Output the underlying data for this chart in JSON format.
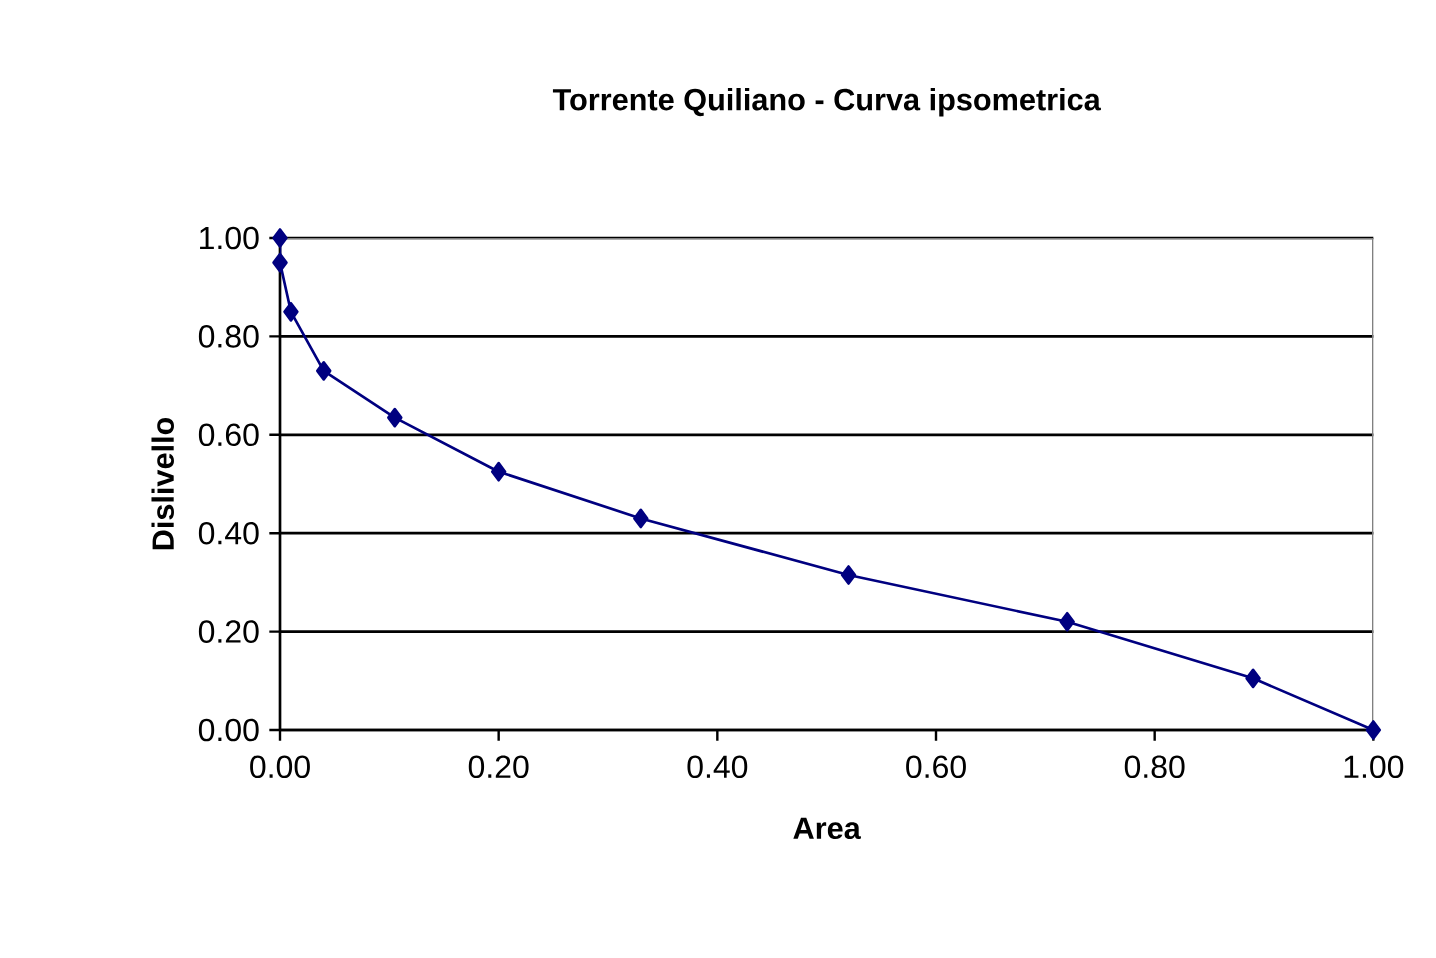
{
  "chart_data": {
    "type": "line",
    "title": "Torrente Quiliano - Curva ipsometrica",
    "xlabel": "Area",
    "ylabel": "Dislivello",
    "x": [
      0,
      0,
      0.01,
      0.04,
      0.105,
      0.2,
      0.33,
      0.52,
      0.72,
      0.89,
      1
    ],
    "series": [
      {
        "color": "#000080",
        "values": [
          1.0,
          0.95,
          0.85,
          0.73,
          0.635,
          0.525,
          0.43,
          0.315,
          0.22,
          0.105,
          0
        ]
      }
    ],
    "xlim": [
      0,
      1
    ],
    "ylim": [
      0,
      1
    ],
    "xticks": [
      {
        "value": 0,
        "label": "0.00"
      },
      {
        "value": 0.2,
        "label": "0.20"
      },
      {
        "value": 0.4,
        "label": "0.40"
      },
      {
        "value": 0.6,
        "label": "0.60"
      },
      {
        "value": 0.8,
        "label": "0.80"
      },
      {
        "value": 1,
        "label": "1.00"
      }
    ],
    "yticks": [
      {
        "value": 0,
        "label": "0.00"
      },
      {
        "value": 0.2,
        "label": "0.20"
      },
      {
        "value": 0.4,
        "label": "0.40"
      },
      {
        "value": 0.6,
        "label": "0.60"
      },
      {
        "value": 0.8,
        "label": "0.80"
      },
      {
        "value": 1,
        "label": "1.00"
      }
    ],
    "grid": "y",
    "marker": "diamond",
    "line_style": "solid"
  }
}
